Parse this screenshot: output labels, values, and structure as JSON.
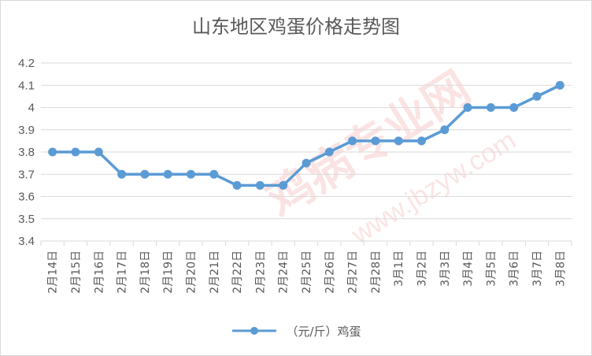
{
  "chart_data": {
    "type": "line",
    "title": "山东地区鸡蛋价格走势图",
    "categories": [
      "2月14日",
      "2月15日",
      "2月16日",
      "2月17日",
      "2月18日",
      "2月19日",
      "2月20日",
      "2月21日",
      "2月22日",
      "2月23日",
      "2月24日",
      "2月25日",
      "2月26日",
      "2月27日",
      "2月28日",
      "3月1日",
      "3月2日",
      "3月3日",
      "3月4日",
      "3月5日",
      "3月6日",
      "3月7日",
      "3月8日"
    ],
    "series": [
      {
        "name": "（元/斤）鸡蛋",
        "values": [
          3.8,
          3.8,
          3.8,
          3.7,
          3.7,
          3.7,
          3.7,
          3.7,
          3.65,
          3.65,
          3.65,
          3.75,
          3.8,
          3.85,
          3.85,
          3.85,
          3.85,
          3.9,
          4.0,
          4.0,
          4.0,
          4.05,
          4.1
        ]
      }
    ],
    "yticks": [
      "3.4",
      "3.5",
      "3.6",
      "3.7",
      "3.8",
      "3.9",
      "4",
      "4.1",
      "4.2"
    ],
    "ylim": [
      3.4,
      4.2
    ],
    "grid": true,
    "legend_position": "bottom",
    "color": "#5b9bd5"
  },
  "watermark": {
    "text": "鸡病专业网",
    "url": "www.jbzyw.com"
  }
}
